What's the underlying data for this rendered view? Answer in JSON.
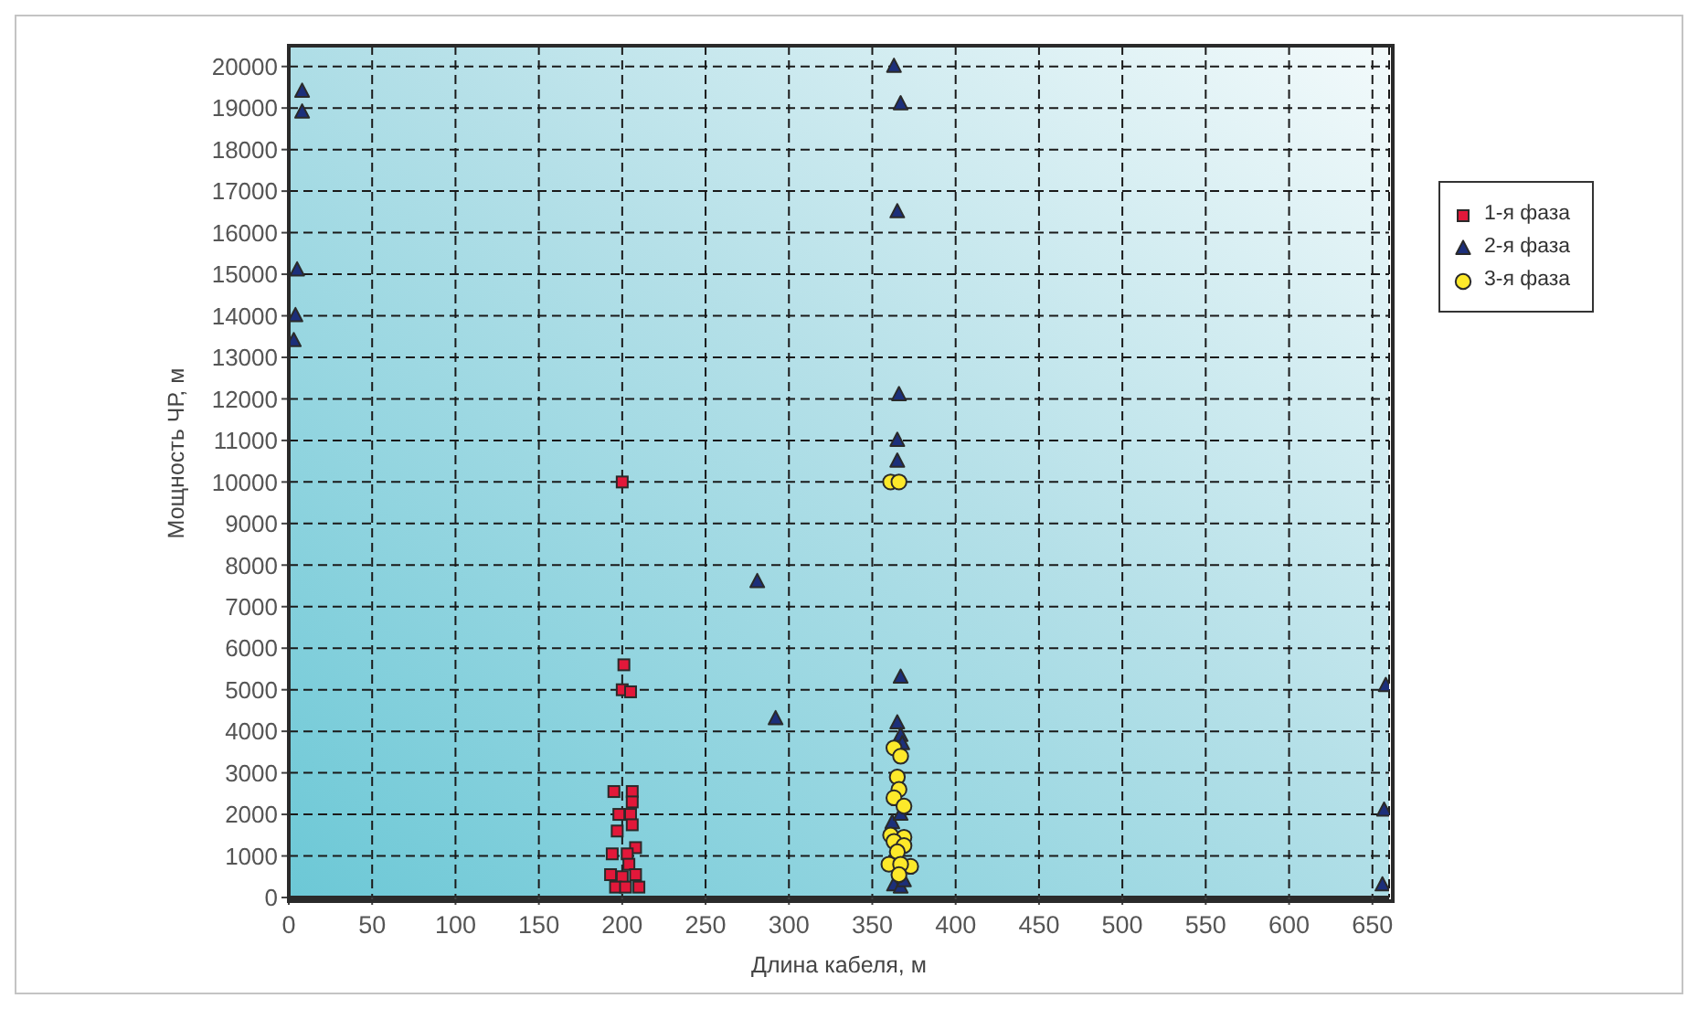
{
  "chart_data": {
    "type": "scatter",
    "xlabel": "Длина кабеля, м",
    "ylabel": "Мощность ЧР, м",
    "xlim": [
      0,
      660
    ],
    "xticks": [
      0,
      50,
      100,
      150,
      200,
      250,
      300,
      350,
      400,
      450,
      500,
      550,
      600,
      650
    ],
    "ylim": [
      0,
      20500
    ],
    "yticks": [
      0,
      1000,
      2000,
      3000,
      4000,
      5000,
      6000,
      7000,
      8000,
      9000,
      10000,
      11000,
      12000,
      13000,
      14000,
      15000,
      16000,
      17000,
      18000,
      19000,
      20000
    ],
    "grid": true,
    "legend": "right",
    "series": [
      {
        "name": "1-я фаза",
        "color": "#e2183a",
        "marker": "square",
        "x": [
          201,
          200,
          205,
          195,
          206,
          206,
          198,
          205,
          206,
          197,
          208,
          194,
          203,
          204,
          193,
          200,
          208,
          196,
          202,
          210,
          200
        ],
        "values": [
          5600,
          5000,
          4950,
          2550,
          2550,
          2300,
          2000,
          2000,
          1750,
          1600,
          1200,
          1050,
          1050,
          800,
          550,
          500,
          550,
          250,
          250,
          250,
          10000
        ]
      },
      {
        "name": "2-я фаза",
        "color": "#1c2f7a",
        "marker": "triangle",
        "x": [
          8,
          8,
          5,
          4,
          3,
          363,
          367,
          365,
          366,
          365,
          365,
          281,
          292,
          367,
          365,
          367,
          368,
          362,
          367,
          363,
          367,
          369,
          658,
          657,
          656
        ],
        "values": [
          19400,
          18900,
          15100,
          14000,
          13400,
          20000,
          19100,
          16500,
          12100,
          11000,
          10500,
          7600,
          4300,
          5300,
          4200,
          3900,
          3700,
          1800,
          2000,
          300,
          250,
          400,
          5100,
          2100,
          300
        ]
      },
      {
        "name": "3-я фаза",
        "color": "#fde92a",
        "marker": "circle",
        "x": [
          361,
          366,
          363,
          367,
          365,
          366,
          363,
          369,
          361,
          369,
          363,
          369,
          365,
          360,
          373,
          367,
          366
        ],
        "values": [
          10000,
          10000,
          3600,
          3400,
          2900,
          2600,
          2400,
          2200,
          1500,
          1450,
          1350,
          1250,
          1100,
          800,
          750,
          800,
          550
        ]
      }
    ]
  }
}
